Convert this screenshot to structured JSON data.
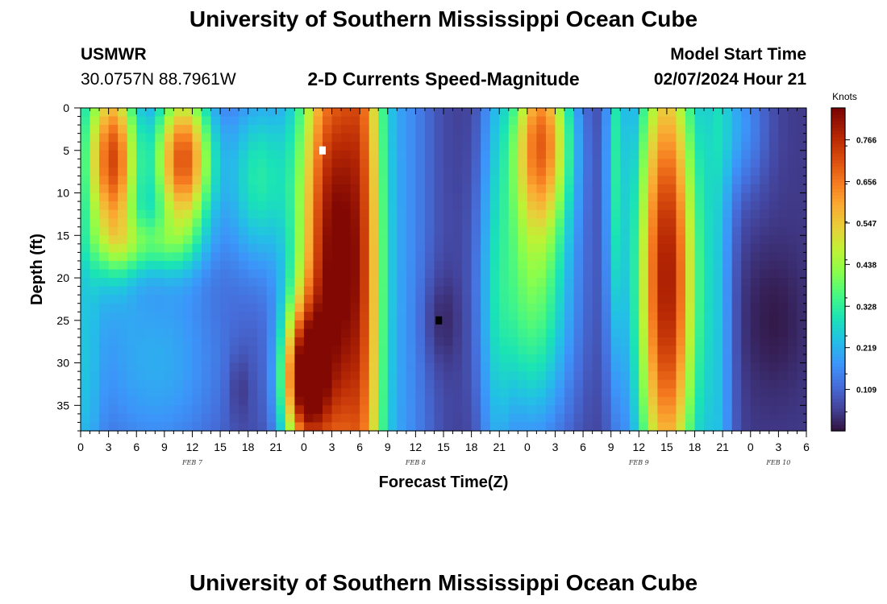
{
  "header": {
    "title": "University of Southern Mississippi Ocean Cube",
    "station_id": "USMWR",
    "coordinates": "30.0757N  88.7961W",
    "model_label": "Model Start Time",
    "model_time": "02/07/2024 Hour 21"
  },
  "footer": {
    "title": "University of Southern Mississippi Ocean Cube"
  },
  "chart_data": {
    "type": "heatmap",
    "title": "2-D Currents Speed-Magnitude",
    "xlabel": "Forecast Time(Z)",
    "ylabel": "Depth (ft)",
    "x_range_hours": [
      0,
      78
    ],
    "xtick_labels": [
      "0",
      "3",
      "6",
      "9",
      "12",
      "15",
      "18",
      "21",
      "0",
      "3",
      "6",
      "9",
      "12",
      "15",
      "18",
      "21",
      "0",
      "3",
      "6",
      "9",
      "12",
      "15",
      "18",
      "21",
      "0",
      "3",
      "6"
    ],
    "date_labels": [
      {
        "label": "FEB 7",
        "hour": 12
      },
      {
        "label": "FEB 8",
        "hour": 36
      },
      {
        "label": "FEB 9",
        "hour": 60
      },
      {
        "label": "FEB 10",
        "hour": 75
      }
    ],
    "ylim": [
      0,
      38
    ],
    "y_inverted": true,
    "yticks": [
      0,
      5,
      10,
      15,
      20,
      25,
      30,
      35
    ],
    "colorbar": {
      "unit": "Knots",
      "range": [
        0,
        0.85
      ],
      "tick_values": [
        0.109,
        0.219,
        0.328,
        0.438,
        0.547,
        0.656,
        0.766
      ],
      "tick_labels": [
        "0.109",
        "0.219",
        "0.328",
        "0.438",
        "0.547",
        "0.656",
        "0.766"
      ]
    },
    "grid": {
      "time_step_hours": 1,
      "depth_step_ft": 1
    },
    "features": [
      {
        "kind": "max",
        "hour": 3.5,
        "depth_ft": 5,
        "value": 0.78
      },
      {
        "kind": "min",
        "hour": 17,
        "depth_ft": 33,
        "value": 0.05
      },
      {
        "kind": "max",
        "hour": 26,
        "depth_ft": 12,
        "value": 0.83
      },
      {
        "kind": "min",
        "hour": 38.5,
        "depth_ft": 25,
        "value": 0.0
      },
      {
        "kind": "max",
        "hour": 50,
        "depth_ft": 5,
        "value": 0.62
      },
      {
        "kind": "min",
        "hour": 55.5,
        "depth_ft": 10,
        "value": 0.07
      },
      {
        "kind": "max",
        "hour": 62.5,
        "depth_ft": 15,
        "value": 0.78
      },
      {
        "kind": "min",
        "hour": 74.5,
        "depth_ft": 25,
        "value": 0.05
      }
    ],
    "markers": [
      {
        "name": "max-marker",
        "hour": 26,
        "depth_ft": 5,
        "color": "#ffffff"
      },
      {
        "name": "min-marker",
        "hour": 38.5,
        "depth_ft": 25,
        "color": "#000000"
      }
    ]
  }
}
